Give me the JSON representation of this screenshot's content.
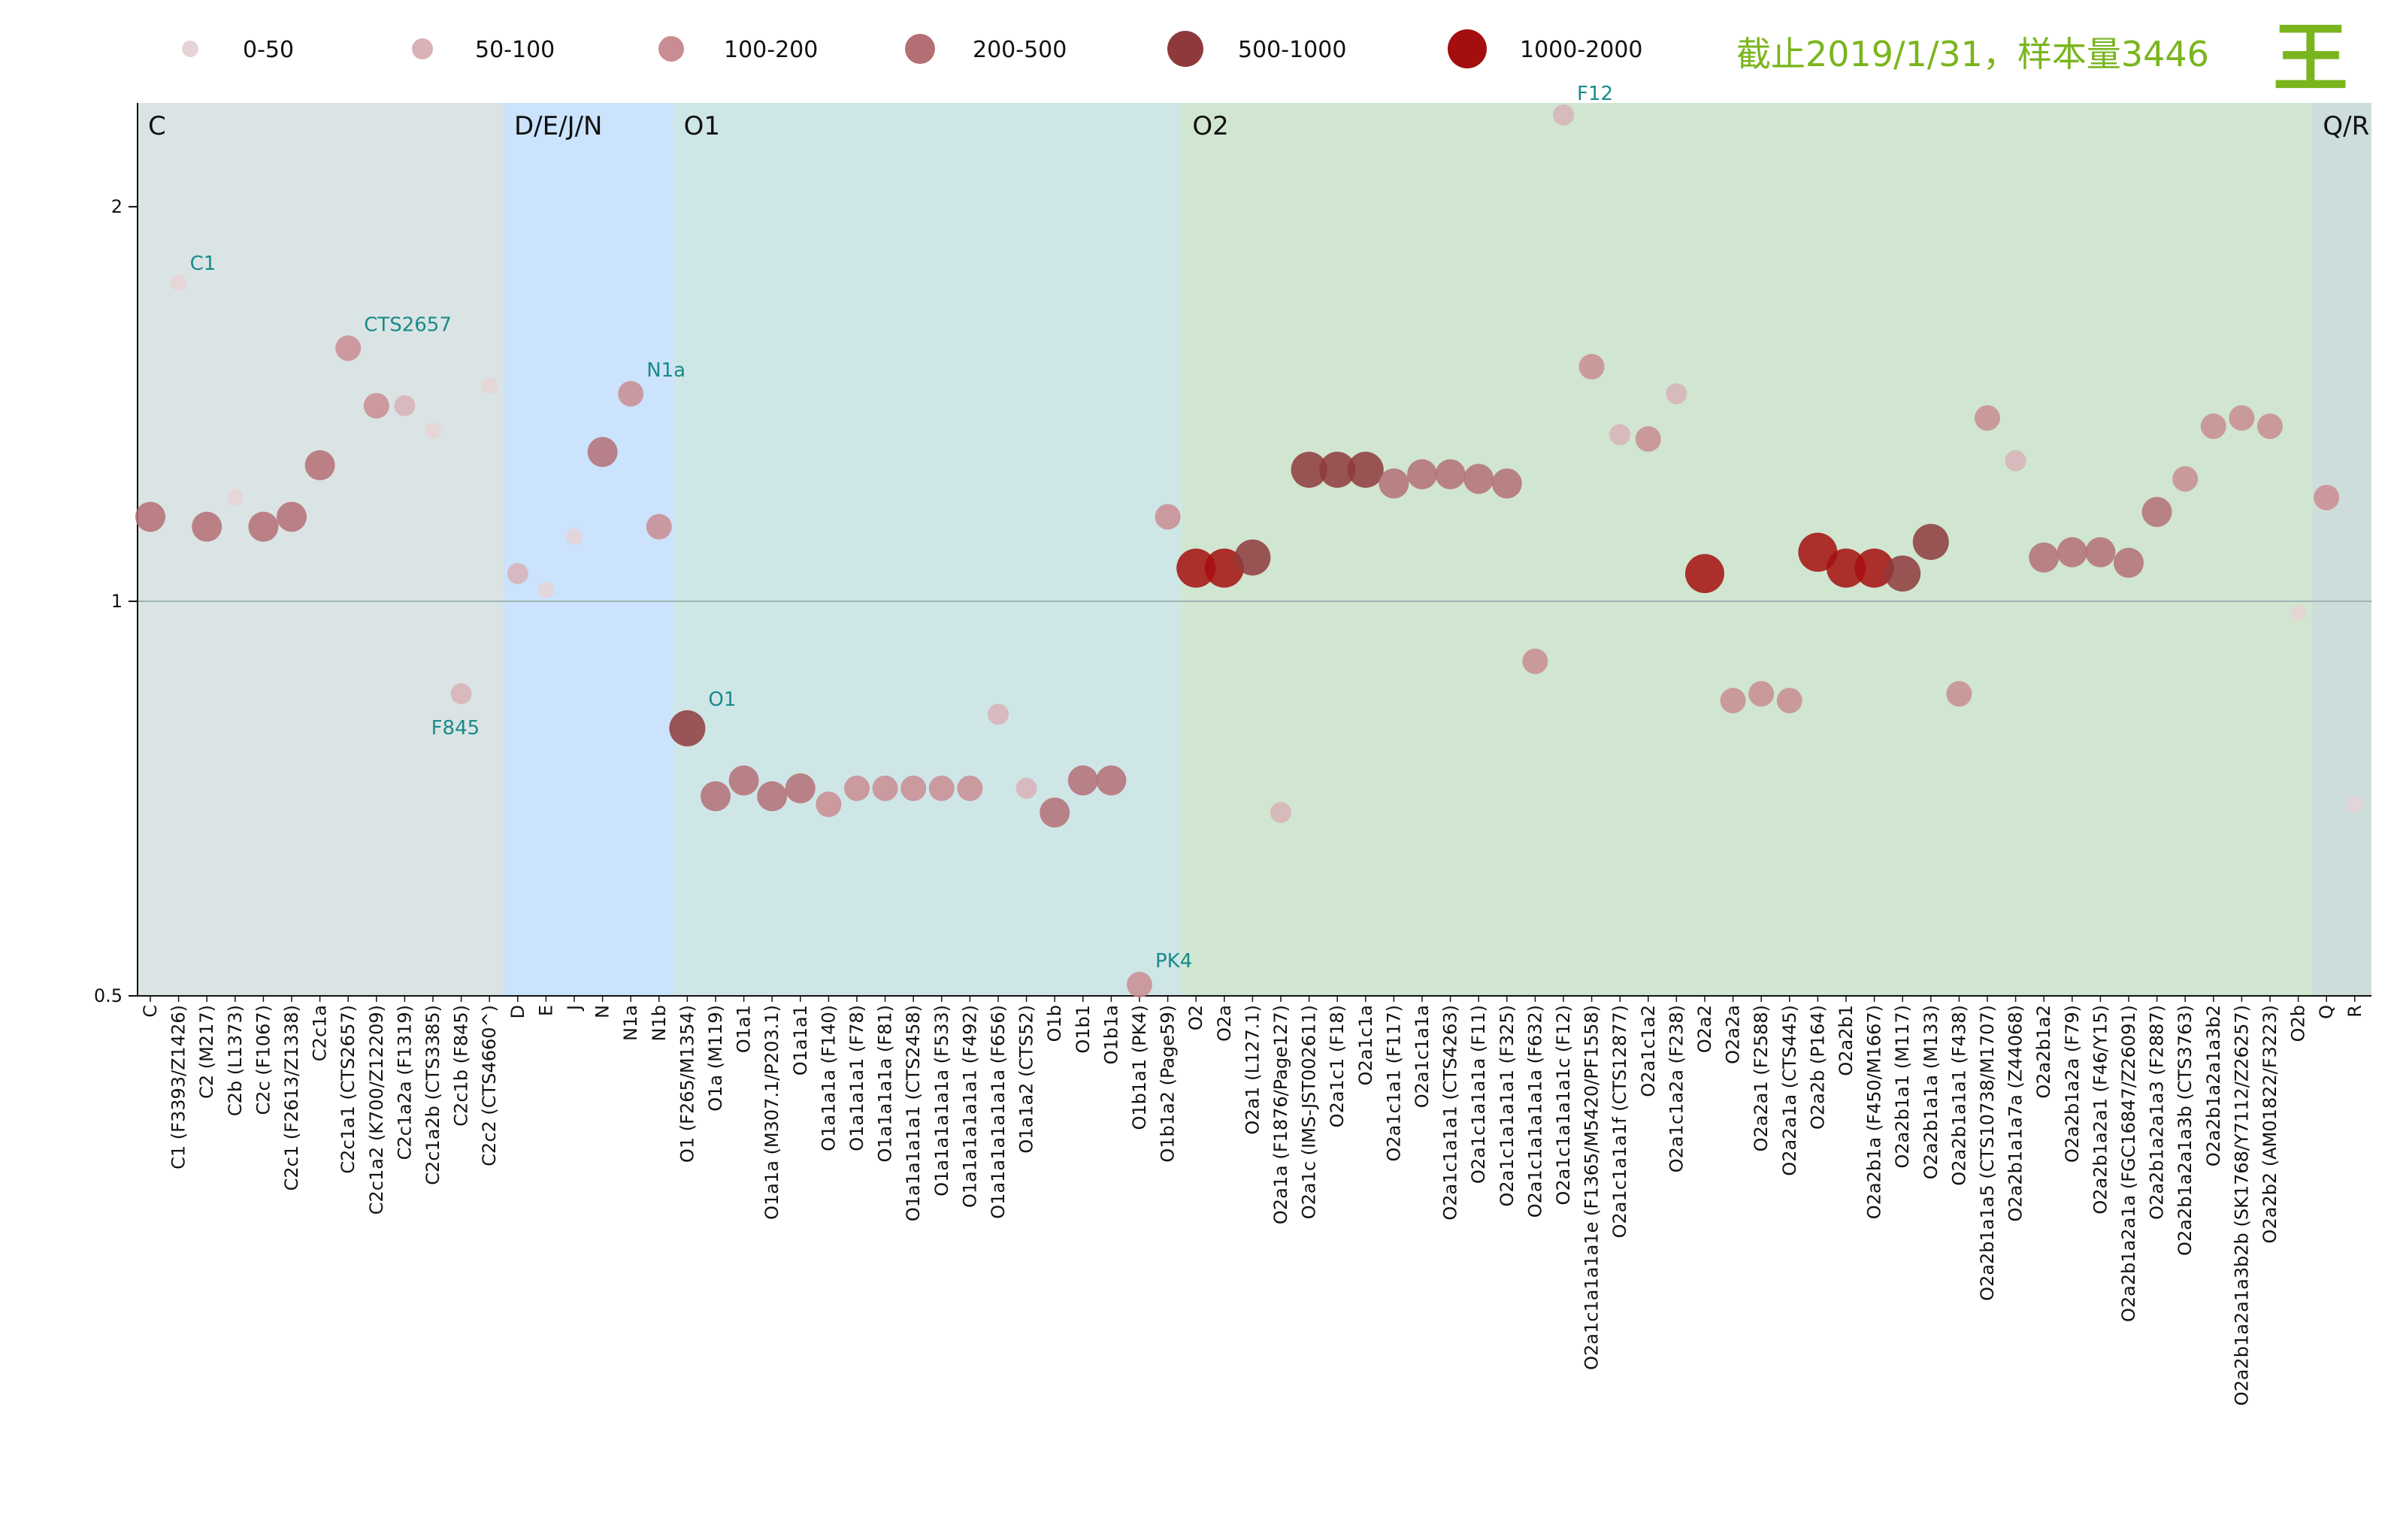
{
  "note": "截止2019/1/31，样本量3446",
  "logo_text": "王",
  "colors": {
    "note": "#7ab51d",
    "logo": "#7ab51d",
    "annotation": "#1a8a8a"
  },
  "chart_data": {
    "type": "scatter",
    "yscale": "log",
    "ylim": [
      0.5,
      2.4
    ],
    "yticks": [
      {
        "value": 0.5,
        "label": "0.5"
      },
      {
        "value": 1,
        "label": "1"
      },
      {
        "value": 2,
        "label": "2"
      }
    ],
    "reference_line": 1,
    "legend": {
      "placement": "top",
      "entries": [
        {
          "label": "0-50",
          "color": "#e6d3d6",
          "size": 0
        },
        {
          "label": "50-100",
          "color": "#d8b2b7",
          "size": 1
        },
        {
          "label": "100-200",
          "color": "#c98c92",
          "size": 2
        },
        {
          "label": "200-500",
          "color": "#b46f75",
          "size": 3
        },
        {
          "label": "500-1000",
          "color": "#8e3a3c",
          "size": 4
        },
        {
          "label": "1000-2000",
          "color": "#a40e0e",
          "size": 5
        }
      ]
    },
    "regions": [
      {
        "label": "C",
        "start": 0,
        "end": 12,
        "color": "#dae4e4"
      },
      {
        "label": "D/E/J/N",
        "start": 13,
        "end": 18,
        "color": "#cbe3fc"
      },
      {
        "label": "O1",
        "start": 19,
        "end": 36,
        "color": "#cfe6e7"
      },
      {
        "label": "O2",
        "start": 37,
        "end": 76,
        "color": "#d0e6d0"
      },
      {
        "label": "Q/R",
        "start": 77,
        "end": 78,
        "color": "#cddddc"
      }
    ],
    "points": [
      {
        "category": "C",
        "y": 1.16,
        "size": 3
      },
      {
        "category": "C1 (F3393/Z1426)",
        "y": 1.75,
        "size": 0,
        "annotation": "C1"
      },
      {
        "category": "C2 (M217)",
        "y": 1.14,
        "size": 3
      },
      {
        "category": "C2b (L1373)",
        "y": 1.2,
        "size": 0
      },
      {
        "category": "C2c (F1067)",
        "y": 1.14,
        "size": 3
      },
      {
        "category": "C2c1 (F2613/Z1338)",
        "y": 1.16,
        "size": 3
      },
      {
        "category": "C2c1a",
        "y": 1.27,
        "size": 3
      },
      {
        "category": "C2c1a1 (CTS2657)",
        "y": 1.56,
        "size": 2,
        "annotation": "CTS2657"
      },
      {
        "category": "C2c1a2 (K700/Z12209)",
        "y": 1.41,
        "size": 2
      },
      {
        "category": "C2c1a2a (F1319)",
        "y": 1.41,
        "size": 1
      },
      {
        "category": "C2c1a2b (CTS3385)",
        "y": 1.35,
        "size": 0
      },
      {
        "category": "C2c1b (F845)",
        "y": 0.85,
        "size": 1,
        "annotation": "F845"
      },
      {
        "category": "C2c2 (CTS4660^)",
        "y": 1.46,
        "size": 0
      },
      {
        "category": "D",
        "y": 1.05,
        "size": 1
      },
      {
        "category": "E",
        "y": 1.02,
        "size": 0
      },
      {
        "category": "J",
        "y": 1.12,
        "size": 0
      },
      {
        "category": "N",
        "y": 1.3,
        "size": 3
      },
      {
        "category": "N1a",
        "y": 1.44,
        "size": 2,
        "annotation": "N1a"
      },
      {
        "category": "N1b",
        "y": 1.14,
        "size": 2
      },
      {
        "category": "O1 (F265/M1354)",
        "y": 0.8,
        "size": 4,
        "annotation": "O1"
      },
      {
        "category": "O1a (M119)",
        "y": 0.71,
        "size": 3
      },
      {
        "category": "O1a1",
        "y": 0.73,
        "size": 3
      },
      {
        "category": "O1a1a (M307.1/P203.1)",
        "y": 0.71,
        "size": 3
      },
      {
        "category": "O1a1a1",
        "y": 0.72,
        "size": 3
      },
      {
        "category": "O1a1a1a (F140)",
        "y": 0.7,
        "size": 2
      },
      {
        "category": "O1a1a1a1 (F78)",
        "y": 0.72,
        "size": 2
      },
      {
        "category": "O1a1a1a1a (F81)",
        "y": 0.72,
        "size": 2
      },
      {
        "category": "O1a1a1a1a1 (CTS2458)",
        "y": 0.72,
        "size": 2
      },
      {
        "category": "O1a1a1a1a1a (F533)",
        "y": 0.72,
        "size": 2
      },
      {
        "category": "O1a1a1a1a1a1 (F492)",
        "y": 0.72,
        "size": 2
      },
      {
        "category": "O1a1a1a1a1a1a (F656)",
        "y": 0.82,
        "size": 1
      },
      {
        "category": "O1a1a2 (CTS52)",
        "y": 0.72,
        "size": 1
      },
      {
        "category": "O1b",
        "y": 0.69,
        "size": 3
      },
      {
        "category": "O1b1",
        "y": 0.73,
        "size": 3
      },
      {
        "category": "O1b1a",
        "y": 0.73,
        "size": 3
      },
      {
        "category": "O1b1a1 (PK4)",
        "y": 0.51,
        "size": 2,
        "annotation": "PK4"
      },
      {
        "category": "O1b1a2 (Page59)",
        "y": 1.16,
        "size": 2
      },
      {
        "category": "O2",
        "y": 1.06,
        "size": 5
      },
      {
        "category": "O2a",
        "y": 1.06,
        "size": 5
      },
      {
        "category": "O2a1 (L127.1)",
        "y": 1.08,
        "size": 4
      },
      {
        "category": "O2a1a (F1876/Page127)",
        "y": 0.69,
        "size": 1
      },
      {
        "category": "O2a1c (IMS-JST002611)",
        "y": 1.26,
        "size": 4
      },
      {
        "category": "O2a1c1 (F18)",
        "y": 1.26,
        "size": 4
      },
      {
        "category": "O2a1c1a",
        "y": 1.26,
        "size": 4
      },
      {
        "category": "O2a1c1a1 (F117)",
        "y": 1.23,
        "size": 3
      },
      {
        "category": "O2a1c1a1a",
        "y": 1.25,
        "size": 3
      },
      {
        "category": "O2a1c1a1a1 (CTS4263)",
        "y": 1.25,
        "size": 3
      },
      {
        "category": "O2a1c1a1a1a (F11)",
        "y": 1.24,
        "size": 3
      },
      {
        "category": "O2a1c1a1a1a1 (F325)",
        "y": 1.23,
        "size": 3
      },
      {
        "category": "O2a1c1a1a1a1a (F632)",
        "y": 0.9,
        "size": 2
      },
      {
        "category": "O2a1c1a1a1a1c (F12)",
        "y": 2.35,
        "size": 1,
        "annotation": "F12"
      },
      {
        "category": "O2a1c1a1a1a1e (F1365/M5420/PF1558)",
        "y": 1.51,
        "size": 2
      },
      {
        "category": "O2a1c1a1a1f (CTS12877)",
        "y": 1.34,
        "size": 1
      },
      {
        "category": "O2a1c1a2",
        "y": 1.33,
        "size": 2
      },
      {
        "category": "O2a1c1a2a (F238)",
        "y": 1.44,
        "size": 1
      },
      {
        "category": "O2a2",
        "y": 1.05,
        "size": 5
      },
      {
        "category": "O2a2a",
        "y": 0.84,
        "size": 2
      },
      {
        "category": "O2a2a1 (F2588)",
        "y": 0.85,
        "size": 2
      },
      {
        "category": "O2a2a1a (CTS445)",
        "y": 0.84,
        "size": 2
      },
      {
        "category": "O2a2b (P164)",
        "y": 1.09,
        "size": 5
      },
      {
        "category": "O2a2b1",
        "y": 1.06,
        "size": 5
      },
      {
        "category": "O2a2b1a (F450/M1667)",
        "y": 1.06,
        "size": 5
      },
      {
        "category": "O2a2b1a1 (M117)",
        "y": 1.05,
        "size": 4
      },
      {
        "category": "O2a2b1a1a (M133)",
        "y": 1.11,
        "size": 4
      },
      {
        "category": "O2a2b1a1a1 (F438)",
        "y": 0.85,
        "size": 2
      },
      {
        "category": "O2a2b1a1a5 (CTS10738/M1707)",
        "y": 1.38,
        "size": 2
      },
      {
        "category": "O2a2b1a1a7a (Z44068)",
        "y": 1.28,
        "size": 1
      },
      {
        "category": "O2a2b1a2",
        "y": 1.08,
        "size": 3
      },
      {
        "category": "O2a2b1a2a (F79)",
        "y": 1.09,
        "size": 3
      },
      {
        "category": "O2a2b1a2a1 (F46/Y15)",
        "y": 1.09,
        "size": 3
      },
      {
        "category": "O2a2b1a2a1a (FGC16847/Z26091)",
        "y": 1.07,
        "size": 3
      },
      {
        "category": "O2a2b1a2a1a3 (F2887)",
        "y": 1.17,
        "size": 3
      },
      {
        "category": "O2a2b1a2a1a3b (CTS3763)",
        "y": 1.24,
        "size": 2
      },
      {
        "category": "O2a2b1a2a1a3b2",
        "y": 1.36,
        "size": 2
      },
      {
        "category": "O2a2b1a2a1a3b2b (SK1768/Y7112/Z26257)",
        "y": 1.38,
        "size": 2
      },
      {
        "category": "O2a2b2 (AM01822/F3223)",
        "y": 1.36,
        "size": 2
      },
      {
        "category": "O2b",
        "y": 0.98,
        "size": 0
      },
      {
        "category": "Q",
        "y": 1.2,
        "size": 2
      },
      {
        "category": "R",
        "y": 0.7,
        "size": 0
      }
    ]
  }
}
